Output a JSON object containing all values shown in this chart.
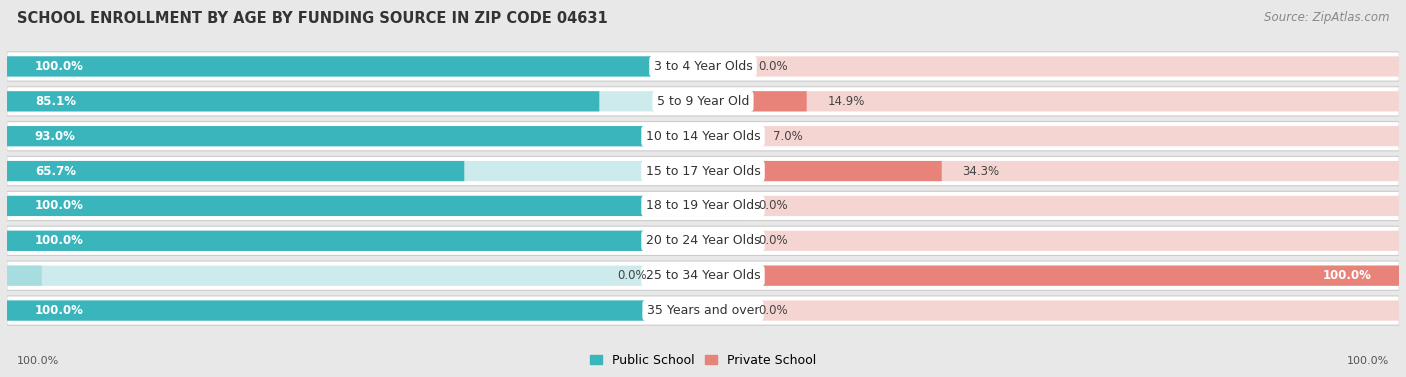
{
  "title": "SCHOOL ENROLLMENT BY AGE BY FUNDING SOURCE IN ZIP CODE 04631",
  "source": "Source: ZipAtlas.com",
  "categories": [
    "3 to 4 Year Olds",
    "5 to 9 Year Old",
    "10 to 14 Year Olds",
    "15 to 17 Year Olds",
    "18 to 19 Year Olds",
    "20 to 24 Year Olds",
    "25 to 34 Year Olds",
    "35 Years and over"
  ],
  "public_values": [
    100.0,
    85.1,
    93.0,
    65.7,
    100.0,
    100.0,
    0.0,
    100.0
  ],
  "private_values": [
    0.0,
    14.9,
    7.0,
    34.3,
    0.0,
    0.0,
    100.0,
    0.0
  ],
  "public_color": "#3ab5bc",
  "private_color": "#e8837a",
  "public_bg_color": "#cdeaec",
  "private_bg_color": "#f5d5d2",
  "public_zero_color": "#a8dde0",
  "bg_color": "#e8e8e8",
  "row_bg_color": "#ffffff",
  "row_border_color": "#cccccc",
  "label_white": "#ffffff",
  "label_dark": "#444444",
  "title_fontsize": 10.5,
  "source_fontsize": 8.5,
  "cat_fontsize": 9,
  "val_fontsize": 8.5,
  "legend_fontsize": 9,
  "footer_fontsize": 8,
  "x_left_label": "100.0%",
  "x_right_label": "100.0%"
}
